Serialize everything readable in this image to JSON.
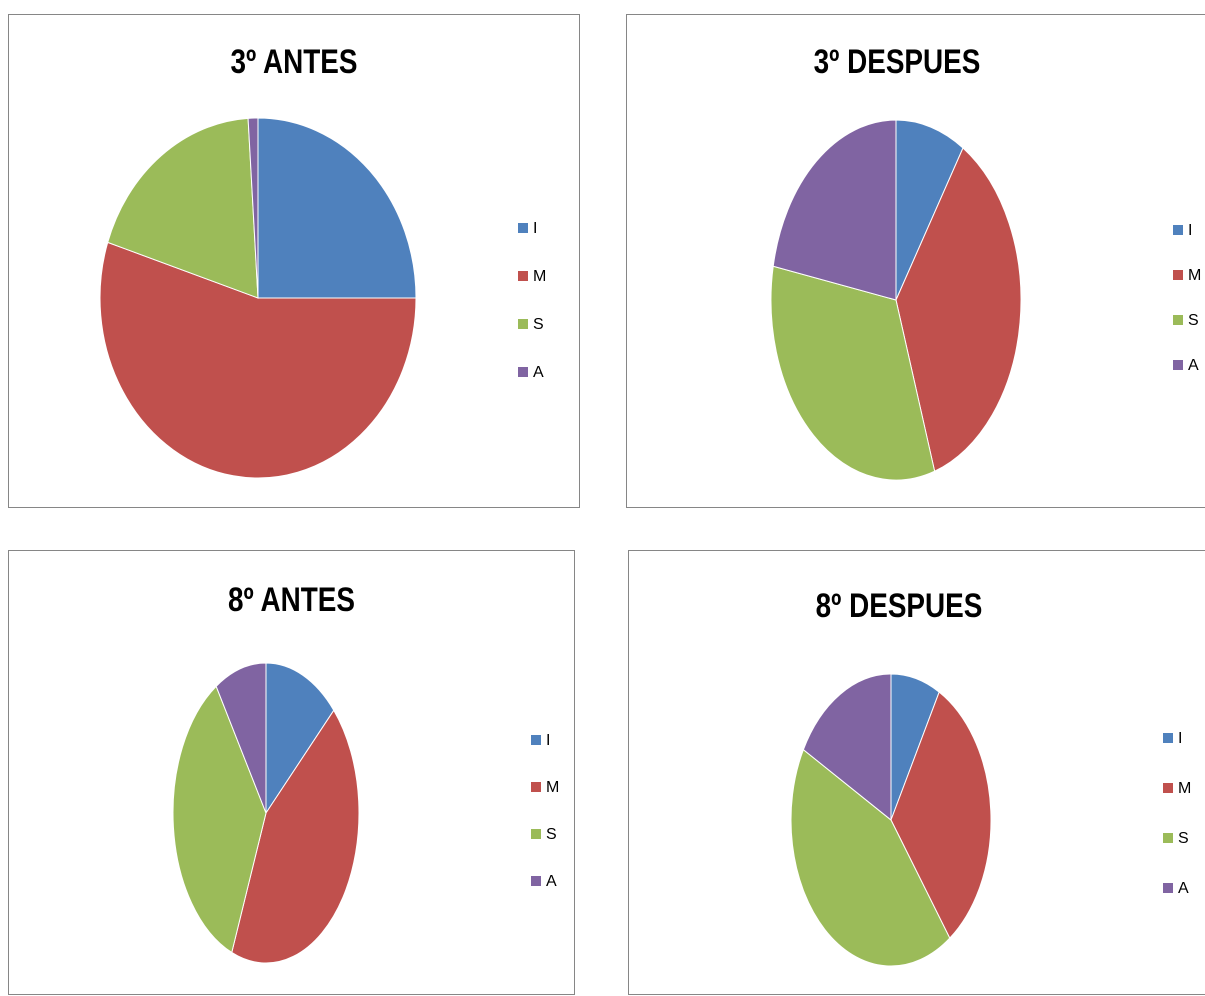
{
  "chart_data": [
    {
      "type": "pie",
      "title": "3º ANTES",
      "categories": [
        "I",
        "M",
        "S",
        "A"
      ],
      "values": [
        25,
        55,
        19,
        1
      ],
      "colors": [
        "#4f81bd",
        "#c0504d",
        "#9bbb59",
        "#8064a2"
      ],
      "legend": "right"
    },
    {
      "type": "pie",
      "title": "3º DESPUES",
      "categories": [
        "I",
        "M",
        "S",
        "A"
      ],
      "values": [
        9,
        36,
        33,
        22
      ],
      "colors": [
        "#4f81bd",
        "#c0504d",
        "#9bbb59",
        "#8064a2"
      ],
      "legend": "right"
    },
    {
      "type": "pie",
      "title": "8º ANTES",
      "categories": [
        "I",
        "M",
        "S",
        "A"
      ],
      "values": [
        13,
        43,
        35,
        9
      ],
      "colors": [
        "#4f81bd",
        "#c0504d",
        "#9bbb59",
        "#8064a2"
      ],
      "legend": "right"
    },
    {
      "type": "pie",
      "title": "8º DESPUES",
      "categories": [
        "I",
        "M",
        "S",
        "A"
      ],
      "values": [
        8,
        32,
        43,
        17
      ],
      "colors": [
        "#4f81bd",
        "#c0504d",
        "#9bbb59",
        "#8064a2"
      ],
      "legend": "right"
    }
  ]
}
